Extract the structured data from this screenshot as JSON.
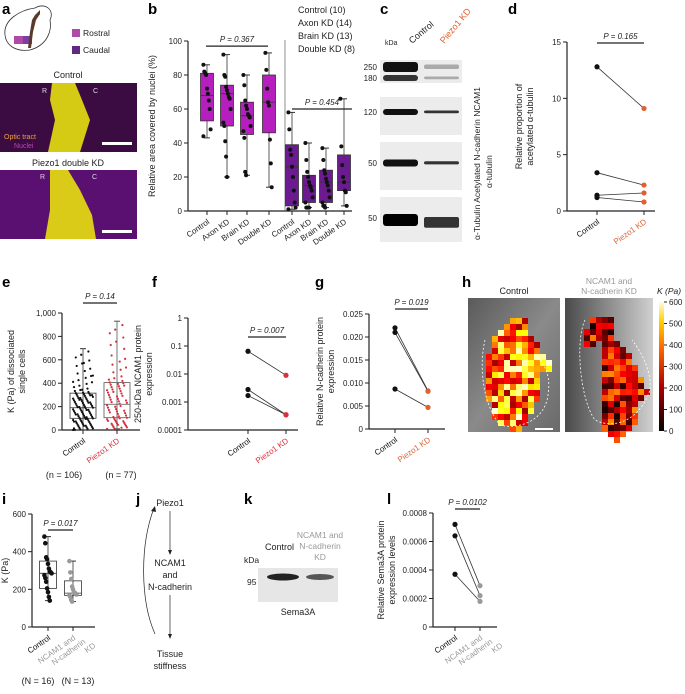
{
  "panel_labels": [
    "a",
    "b",
    "c",
    "d",
    "e",
    "f",
    "g",
    "h",
    "i",
    "j",
    "k",
    "l"
  ],
  "colors": {
    "rostral": "#b51fbd",
    "caudal": "#6b1a8f",
    "piezo_kd": "#e0602f",
    "piezo_kd_e": "#d8303c",
    "ncam_kd": "#9a9a9a",
    "control": "#111111"
  },
  "panel_a": {
    "legend": [
      {
        "label": "Rostral",
        "color": "#b04aaa"
      },
      {
        "label": "Caudal",
        "color": "#5e2a82"
      }
    ],
    "image1_title": "Control",
    "image2_title": "Piezo1 double KD",
    "marker_r": "R",
    "marker_c": "C",
    "channel_optic": "Optic tract",
    "channel_nuclei": "Nuclei"
  },
  "panel_b_legend": [
    "Control (10)",
    "Axon KD (14)",
    "Brain KD (13)",
    "Double KD (8)"
  ],
  "panel_c": {
    "kda": "kDa",
    "lanes": [
      {
        "label": "Control",
        "color": "#222222"
      },
      {
        "label": "Piezo1 KD",
        "color": "#e0602f"
      }
    ],
    "blots": [
      {
        "name": "NCAM1",
        "markers": [
          "250",
          "180"
        ]
      },
      {
        "name": "N-cadherin",
        "markers": [
          "120"
        ]
      },
      {
        "name": "Acetylated α-tubulin",
        "markers": [
          "50"
        ]
      },
      {
        "name": "α-Tubulin",
        "markers": [
          "50"
        ]
      }
    ],
    "rotated_labels": [
      "α-Tubulin Acetylated  N-cadherin  NCAM1",
      "α-tubulin"
    ]
  },
  "panel_h": {
    "title_control": "Control",
    "title_kd_line1": "NCAM1 and",
    "title_kd_line2": "N-cadherin KD",
    "colorbar_label": "K (Pa)",
    "colorbar_ticks": [
      "600",
      "500",
      "400",
      "300",
      "200",
      "100",
      "0"
    ],
    "colorbar_range": [
      0,
      600
    ],
    "colormap": "hot"
  },
  "panel_j": {
    "nodes": [
      "Piezo1",
      "NCAM1",
      "and",
      "N-cadherin",
      "Tissue",
      "stiffness"
    ]
  },
  "panel_k": {
    "lanes": [
      {
        "label": "Control",
        "color": "#222222"
      },
      {
        "label_lines": [
          "NCAM1 and",
          "N-cadherin",
          "KD"
        ],
        "color": "#9a9a9a"
      }
    ],
    "kda": "kDa",
    "marker": "95",
    "protein": "Sema3A"
  },
  "chart_data": [
    {
      "id": "b",
      "type": "box",
      "ylabel": "Relative area covered by nuclei (%)",
      "ylim": [
        0,
        100
      ],
      "yticks": [
        "0",
        "20",
        "40",
        "60",
        "80",
        "100"
      ],
      "groups": [
        {
          "name": "Rostral",
          "pvalue": "P = 0.367",
          "color": "#b51fbd",
          "categories": [
            "Control",
            "Axon KD",
            "Brain KD",
            "Double KD"
          ],
          "boxes": [
            {
              "min": 43,
              "q1": 53,
              "median": 68,
              "q3": 81,
              "max": 86,
              "points": [
                86,
                82,
                81,
                80,
                72,
                69,
                65,
                60,
                48,
                44
              ]
            },
            {
              "min": 20,
              "q1": 50,
              "median": 69,
              "q3": 74,
              "max": 92,
              "points": [
                92,
                80,
                79,
                73,
                71,
                69,
                67,
                66,
                60,
                52,
                50,
                41,
                32,
                20
              ]
            },
            {
              "min": 21,
              "q1": 45,
              "median": 56,
              "q3": 64,
              "max": 80,
              "points": [
                80,
                74,
                65,
                62,
                60,
                57,
                56,
                55,
                50,
                47,
                43,
                23,
                21
              ]
            },
            {
              "min": 14,
              "q1": 46,
              "median": 64,
              "q3": 80,
              "max": 93,
              "points": [
                93,
                83,
                72,
                64,
                62,
                42,
                28,
                14
              ]
            }
          ]
        },
        {
          "name": "Caudal",
          "pvalue": "P = 0.454",
          "color": "#6b1a8f",
          "categories": [
            "Control",
            "Axon KD",
            "Brain KD",
            "Double KD"
          ],
          "boxes": [
            {
              "min": 1,
              "q1": 3,
              "median": 26,
              "q3": 39,
              "max": 58,
              "points": [
                58,
                48,
                36,
                33,
                26,
                20,
                12,
                5,
                2,
                1
              ]
            },
            {
              "min": 2,
              "q1": 5,
              "median": 15,
              "q3": 21,
              "max": 40,
              "points": [
                40,
                30,
                23,
                20,
                17,
                15,
                14,
                12,
                8,
                5,
                2,
                2,
                2,
                2
              ]
            },
            {
              "min": 2,
              "q1": 5,
              "median": 17,
              "q3": 24,
              "max": 37,
              "points": [
                37,
                30,
                24,
                22,
                19,
                17,
                15,
                12,
                8,
                5,
                3,
                3,
                2
              ]
            },
            {
              "min": 3,
              "q1": 12,
              "median": 17,
              "q3": 33,
              "max": 66,
              "points": [
                66,
                38,
                27,
                20,
                17,
                12,
                11,
                3
              ]
            }
          ]
        }
      ]
    },
    {
      "id": "d",
      "type": "paired-line",
      "ylabel": [
        "Relative proportion of",
        "acetylated α-tubulin"
      ],
      "ylim": [
        0,
        15
      ],
      "yticks": [
        "0",
        "5",
        "10",
        "15"
      ],
      "categories": [
        "Control",
        "Piezo1 KD"
      ],
      "pvalue": "P = 0.165",
      "pairs": [
        [
          12.8,
          9.1
        ],
        [
          3.4,
          2.3
        ],
        [
          1.4,
          1.6
        ],
        [
          1.2,
          0.8
        ]
      ]
    },
    {
      "id": "e",
      "type": "box",
      "ylabel": [
        "K (Pa) of dissociated",
        "single cells"
      ],
      "ylim": [
        0,
        1000
      ],
      "yticks": [
        "0",
        "200",
        "400",
        "600",
        "800",
        "1,000"
      ],
      "categories": [
        "Control",
        "Piezo1 KD"
      ],
      "pvalue": "P = 0.14",
      "n_labels": [
        "(n = 106)",
        "(n = 77)"
      ],
      "boxes": [
        {
          "min": 0,
          "q1": 100,
          "median": 190,
          "q3": 315,
          "max": 695,
          "n": 106
        },
        {
          "min": 10,
          "q1": 105,
          "median": 220,
          "q3": 405,
          "max": 930,
          "n": 77
        }
      ]
    },
    {
      "id": "f",
      "type": "paired-line",
      "yscale": "log",
      "ylabel": [
        "250-kDa NCAM1 protein",
        "expression"
      ],
      "ylim": [
        0.0001,
        1
      ],
      "yticks": [
        "0.0001",
        "0.001",
        "0.01",
        "0.1",
        "1"
      ],
      "categories": [
        "Control",
        "Piezo1 KD"
      ],
      "pvalue": "P = 0.007",
      "pairs": [
        [
          0.065,
          0.009
        ],
        [
          0.0028,
          0.00035
        ],
        [
          0.0017,
          0.00035
        ]
      ]
    },
    {
      "id": "g",
      "type": "paired-line",
      "ylabel": [
        "Relative N-cadherin protein",
        "expression"
      ],
      "ylim": [
        0,
        0.025
      ],
      "yticks": [
        "0",
        "0.005",
        "0.010",
        "0.015",
        "0.020",
        "0.025"
      ],
      "categories": [
        "Control",
        "Piezo1 KD"
      ],
      "pvalue": "P = 0.019",
      "pairs": [
        [
          0.022,
          0.0083
        ],
        [
          0.021,
          0.0082
        ],
        [
          0.0087,
          0.0047
        ]
      ]
    },
    {
      "id": "i",
      "type": "box",
      "ylabel": [
        "K (Pa)"
      ],
      "ylim": [
        0,
        600
      ],
      "yticks": [
        "0",
        "200",
        "400",
        "600"
      ],
      "categories": [
        "Control",
        "NCAM1 and N-cadherin KD"
      ],
      "pvalue": "P = 0.017",
      "n_labels": [
        "(N = 16)",
        "(N = 13)"
      ],
      "boxes": [
        {
          "min": 140,
          "q1": 205,
          "median": 285,
          "q3": 350,
          "max": 480,
          "points": [
            480,
            445,
            370,
            360,
            335,
            310,
            295,
            290,
            285,
            275,
            260,
            240,
            205,
            185,
            160,
            140
          ]
        },
        {
          "min": 135,
          "q1": 168,
          "median": 180,
          "q3": 245,
          "max": 350,
          "points": [
            350,
            290,
            255,
            215,
            200,
            185,
            180,
            178,
            172,
            168,
            160,
            145,
            135
          ]
        }
      ]
    },
    {
      "id": "l",
      "type": "paired-line",
      "ylabel": [
        "Relative Sema3A protein",
        "expression levels"
      ],
      "ylim": [
        0,
        0.0008
      ],
      "yticks": [
        "0",
        "0.0002",
        "0.0004",
        "0.0006",
        "0.0008"
      ],
      "categories": [
        "Control",
        "NCAM1 and N-cadherin KD"
      ],
      "pvalue": "P = 0.0102",
      "pairs": [
        [
          0.00072,
          0.00029
        ],
        [
          0.00064,
          0.00022
        ],
        [
          0.00037,
          0.00018
        ]
      ]
    }
  ]
}
